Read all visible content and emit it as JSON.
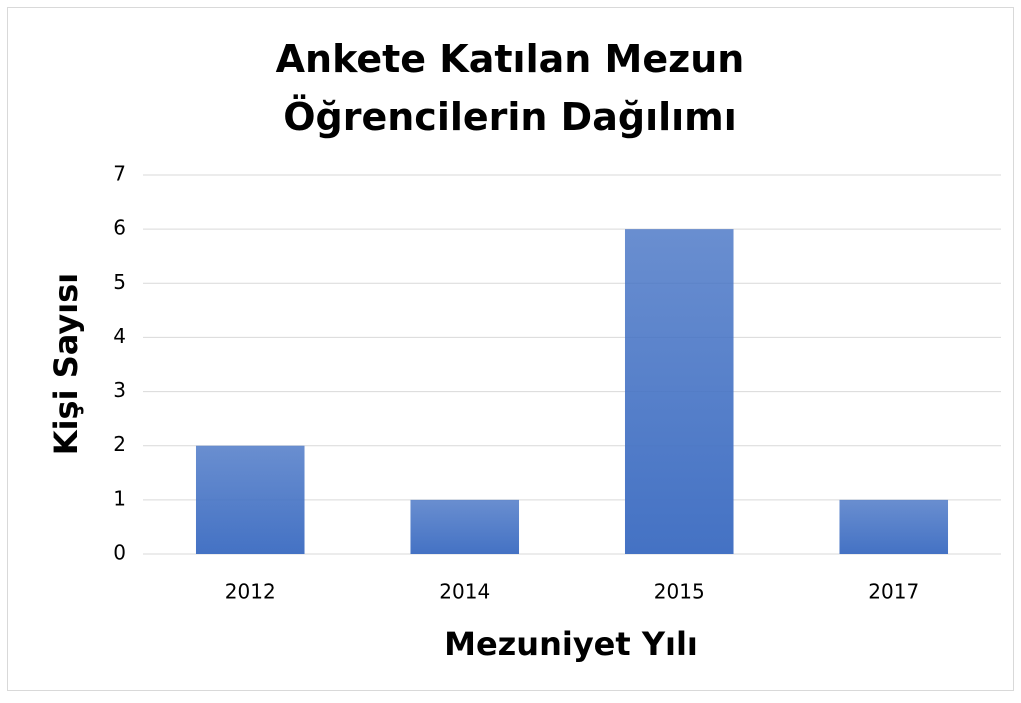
{
  "chart_data": {
    "type": "bar",
    "title": "Ankete Katılan Mezun Öğrencilerin Dağılımı",
    "categories": [
      "2012",
      "2014",
      "2015",
      "2017"
    ],
    "values": [
      2,
      1,
      6,
      1
    ],
    "color": "#4472c4",
    "xlabel": "Mezuniyet Yılı",
    "ylabel": "Kişi Sayısı",
    "ylim": [
      0,
      7
    ],
    "yticks": [
      0,
      1,
      2,
      3,
      4,
      5,
      6,
      7
    ],
    "grid": true
  }
}
